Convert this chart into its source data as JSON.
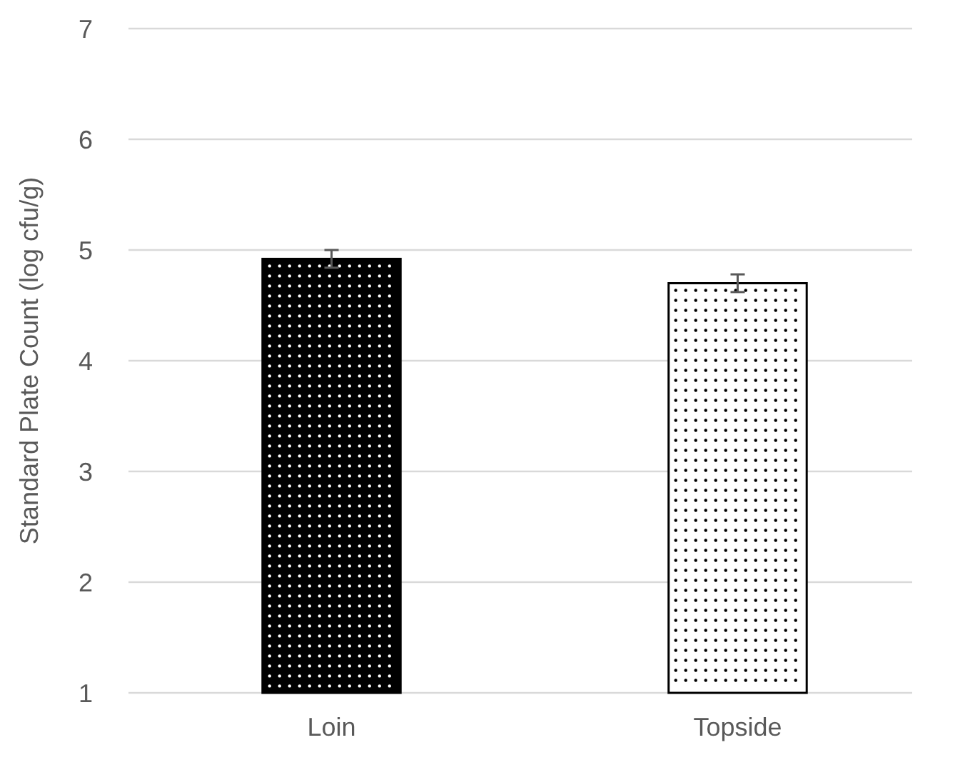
{
  "chart_data": {
    "type": "bar",
    "ylabel": "Standard Plate Count (log cfu/g)",
    "categories": [
      "Loin",
      "Topside"
    ],
    "values": [
      4.92,
      4.7
    ],
    "colors": [
      "#000000",
      "#ffffff"
    ],
    "errors": [
      0.08,
      0.08
    ],
    "ylim": [
      1,
      7
    ],
    "yticks": [
      1,
      2,
      3,
      4,
      5,
      6,
      7
    ],
    "grid": "y"
  }
}
